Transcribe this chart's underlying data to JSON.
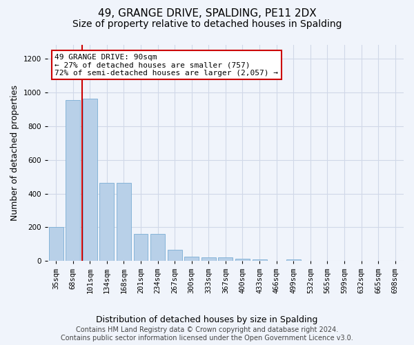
{
  "title": "49, GRANGE DRIVE, SPALDING, PE11 2DX",
  "subtitle": "Size of property relative to detached houses in Spalding",
  "xlabel": "Distribution of detached houses by size in Spalding",
  "ylabel": "Number of detached properties",
  "categories": [
    "35sqm",
    "68sqm",
    "101sqm",
    "134sqm",
    "168sqm",
    "201sqm",
    "234sqm",
    "267sqm",
    "300sqm",
    "333sqm",
    "367sqm",
    "400sqm",
    "433sqm",
    "466sqm",
    "499sqm",
    "532sqm",
    "565sqm",
    "599sqm",
    "632sqm",
    "665sqm",
    "698sqm"
  ],
  "values": [
    200,
    955,
    960,
    462,
    462,
    162,
    162,
    68,
    27,
    22,
    22,
    15,
    10,
    0,
    12,
    0,
    0,
    0,
    0,
    0,
    0
  ],
  "bar_color": "#b8d0e8",
  "bar_edge_color": "#7aadd4",
  "vline_x_idx": 1.55,
  "vline_color": "#cc0000",
  "annotation_text": "49 GRANGE DRIVE: 90sqm\n← 27% of detached houses are smaller (757)\n72% of semi-detached houses are larger (2,057) →",
  "annotation_box_color": "#ffffff",
  "annotation_box_edge": "#cc0000",
  "ylim": [
    0,
    1280
  ],
  "yticks": [
    0,
    200,
    400,
    600,
    800,
    1000,
    1200
  ],
  "footer": "Contains HM Land Registry data © Crown copyright and database right 2024.\nContains public sector information licensed under the Open Government Licence v3.0.",
  "bg_color": "#f0f4fb",
  "plot_bg_color": "#f0f4fb",
  "grid_color": "#d0d8e8",
  "title_fontsize": 11,
  "subtitle_fontsize": 10,
  "label_fontsize": 9,
  "tick_fontsize": 7.5,
  "footer_fontsize": 7,
  "ann_fontsize": 8
}
